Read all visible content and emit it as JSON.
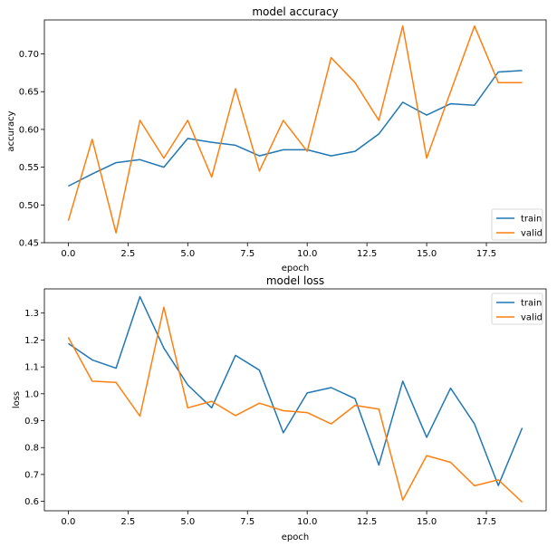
{
  "chart_data": [
    {
      "type": "line",
      "title": "model accuracy",
      "xlabel": "epoch",
      "ylabel": "accuracy",
      "xlim": [
        -1.0,
        20.0
      ],
      "ylim": [
        0.45,
        0.745
      ],
      "xticks": [
        0.0,
        2.5,
        5.0,
        7.5,
        10.0,
        12.5,
        15.0,
        17.5
      ],
      "xtick_labels": [
        "0.0",
        "2.5",
        "5.0",
        "7.5",
        "10.0",
        "12.5",
        "15.0",
        "17.5"
      ],
      "yticks": [
        0.45,
        0.5,
        0.55,
        0.6,
        0.65,
        0.7
      ],
      "ytick_labels": [
        "0.45",
        "0.50",
        "0.55",
        "0.60",
        "0.65",
        "0.70"
      ],
      "legend_position": "lower right",
      "grid": false,
      "x": [
        0,
        1,
        2,
        3,
        4,
        5,
        6,
        7,
        8,
        9,
        10,
        11,
        12,
        13,
        14,
        15,
        16,
        17,
        18,
        19
      ],
      "series": [
        {
          "name": "train",
          "color": "#1f77b4",
          "values": [
            0.525,
            0.541,
            0.556,
            0.56,
            0.55,
            0.588,
            0.583,
            0.579,
            0.565,
            0.573,
            0.573,
            0.565,
            0.571,
            0.594,
            0.636,
            0.619,
            0.634,
            0.632,
            0.676,
            0.678
          ]
        },
        {
          "name": "valid",
          "color": "#ff7f0e",
          "values": [
            0.479,
            0.587,
            0.463,
            0.612,
            0.562,
            0.612,
            0.537,
            0.654,
            0.545,
            0.612,
            0.571,
            0.695,
            0.662,
            0.612,
            0.737,
            0.562,
            0.65,
            0.737,
            0.662,
            0.662
          ]
        }
      ]
    },
    {
      "type": "line",
      "title": "model loss",
      "xlabel": "epoch",
      "ylabel": "loss",
      "xlim": [
        -1.0,
        20.0
      ],
      "ylim": [
        0.565,
        1.39
      ],
      "xticks": [
        0.0,
        2.5,
        5.0,
        7.5,
        10.0,
        12.5,
        15.0,
        17.5
      ],
      "xtick_labels": [
        "0.0",
        "2.5",
        "5.0",
        "7.5",
        "10.0",
        "12.5",
        "15.0",
        "17.5"
      ],
      "yticks": [
        0.6,
        0.7,
        0.8,
        0.9,
        1.0,
        1.1,
        1.2,
        1.3
      ],
      "ytick_labels": [
        "0.6",
        "0.7",
        "0.8",
        "0.9",
        "1.0",
        "1.1",
        "1.2",
        "1.3"
      ],
      "legend_position": "upper right",
      "grid": false,
      "x": [
        0,
        1,
        2,
        3,
        4,
        5,
        6,
        7,
        8,
        9,
        10,
        11,
        12,
        13,
        14,
        15,
        16,
        17,
        18,
        19
      ],
      "series": [
        {
          "name": "train",
          "color": "#1f77b4",
          "values": [
            1.187,
            1.126,
            1.095,
            1.361,
            1.17,
            1.033,
            0.948,
            1.143,
            1.088,
            0.855,
            1.003,
            1.023,
            0.982,
            0.735,
            1.047,
            0.838,
            1.021,
            0.888,
            0.659,
            0.873
          ]
        },
        {
          "name": "valid",
          "color": "#ff7f0e",
          "values": [
            1.21,
            1.047,
            1.042,
            0.917,
            1.322,
            0.948,
            0.972,
            0.919,
            0.965,
            0.937,
            0.93,
            0.888,
            0.957,
            0.943,
            0.605,
            0.77,
            0.745,
            0.658,
            0.68,
            0.597
          ]
        }
      ]
    }
  ]
}
